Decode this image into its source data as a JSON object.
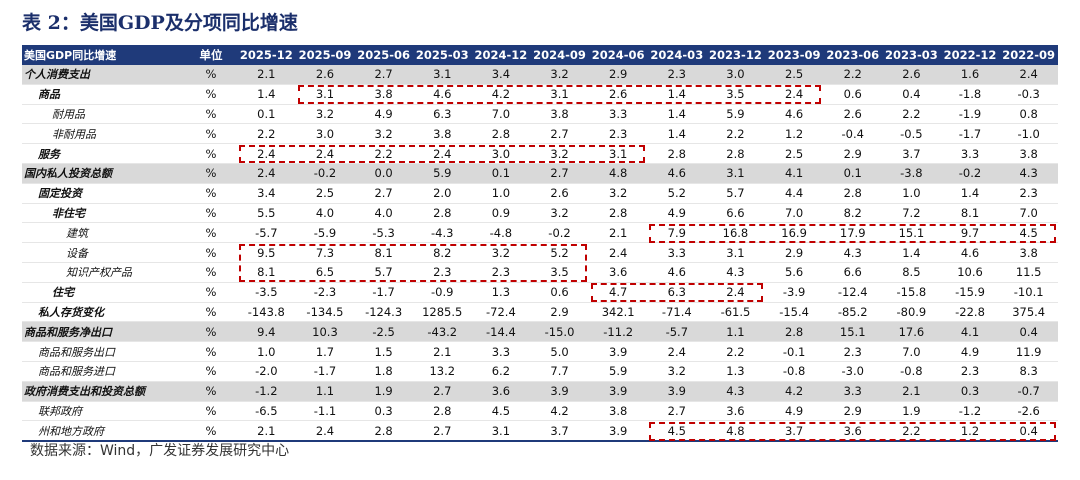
{
  "title": "表 2：美国GDP及分项同比增速",
  "table": {
    "header": [
      "美国GDP同比增速",
      "单位",
      "2025-12",
      "2025-09",
      "2025-06",
      "2025-03",
      "2024-12",
      "2024-09",
      "2024-06",
      "2024-03",
      "2023-12",
      "2023-09",
      "2023-06",
      "2023-03",
      "2022-12",
      "2022-09"
    ],
    "rows": [
      [
        "个人消费支出",
        "%",
        "2.1",
        "2.6",
        "2.7",
        "3.1",
        "3.4",
        "3.2",
        "2.9",
        "2.3",
        "3.0",
        "2.5",
        "2.2",
        "2.6",
        "1.6",
        "2.4"
      ],
      [
        "商品",
        "%",
        "1.4",
        "3.1",
        "3.8",
        "4.6",
        "4.2",
        "3.1",
        "2.6",
        "1.4",
        "3.5",
        "2.4",
        "0.6",
        "0.4",
        "-1.8",
        "-0.3"
      ],
      [
        "耐用品",
        "%",
        "0.1",
        "3.2",
        "4.9",
        "6.3",
        "7.0",
        "3.8",
        "3.3",
        "1.4",
        "5.9",
        "4.6",
        "2.6",
        "2.2",
        "-1.9",
        "0.8"
      ],
      [
        "非耐用品",
        "%",
        "2.2",
        "3.0",
        "3.2",
        "3.8",
        "2.8",
        "2.7",
        "2.3",
        "1.4",
        "2.2",
        "1.2",
        "-0.4",
        "-0.5",
        "-1.7",
        "-1.0"
      ],
      [
        "服务",
        "%",
        "2.4",
        "2.4",
        "2.2",
        "2.4",
        "3.0",
        "3.2",
        "3.1",
        "2.8",
        "2.8",
        "2.5",
        "2.9",
        "3.7",
        "3.3",
        "3.8"
      ],
      [
        "国内私人投资总额",
        "%",
        "2.4",
        "-0.2",
        "0.0",
        "5.9",
        "0.1",
        "2.7",
        "4.8",
        "4.6",
        "3.1",
        "4.1",
        "0.1",
        "-3.8",
        "-0.2",
        "4.3"
      ],
      [
        "固定投资",
        "%",
        "3.4",
        "2.5",
        "2.7",
        "2.0",
        "1.0",
        "2.6",
        "3.2",
        "5.2",
        "5.7",
        "4.4",
        "2.8",
        "1.0",
        "1.4",
        "2.3"
      ],
      [
        "非住宅",
        "%",
        "5.5",
        "4.0",
        "4.0",
        "2.8",
        "0.9",
        "3.2",
        "2.8",
        "4.9",
        "6.6",
        "7.0",
        "8.2",
        "7.2",
        "8.1",
        "7.0"
      ],
      [
        "建筑",
        "%",
        "-5.7",
        "-5.9",
        "-5.3",
        "-4.3",
        "-4.8",
        "-0.2",
        "2.1",
        "7.9",
        "16.8",
        "16.9",
        "17.9",
        "15.1",
        "9.7",
        "4.5"
      ],
      [
        "设备",
        "%",
        "9.5",
        "7.3",
        "8.1",
        "8.2",
        "3.2",
        "5.2",
        "2.4",
        "3.3",
        "3.1",
        "2.9",
        "4.3",
        "1.4",
        "4.6",
        "3.8"
      ],
      [
        "知识产权产品",
        "%",
        "8.1",
        "6.5",
        "5.7",
        "2.3",
        "2.3",
        "3.5",
        "3.6",
        "4.6",
        "4.3",
        "5.6",
        "6.6",
        "8.5",
        "10.6",
        "11.5"
      ],
      [
        "住宅",
        "%",
        "-3.5",
        "-2.3",
        "-1.7",
        "-0.9",
        "1.3",
        "0.6",
        "4.7",
        "6.3",
        "2.4",
        "-3.9",
        "-12.4",
        "-15.8",
        "-15.9",
        "-10.1"
      ],
      [
        "私人存货变化",
        "%",
        "-143.8",
        "-134.5",
        "-124.3",
        "1285.5",
        "-72.4",
        "2.9",
        "342.1",
        "-71.4",
        "-61.5",
        "-15.4",
        "-85.2",
        "-80.9",
        "-22.8",
        "375.4"
      ],
      [
        "商品和服务净出口",
        "%",
        "9.4",
        "10.3",
        "-2.5",
        "-43.2",
        "-14.4",
        "-15.0",
        "-11.2",
        "-5.7",
        "1.1",
        "2.8",
        "15.1",
        "17.6",
        "4.1",
        "0.4"
      ],
      [
        "商品和服务出口",
        "%",
        "1.0",
        "1.7",
        "1.5",
        "2.1",
        "3.3",
        "5.0",
        "3.9",
        "2.4",
        "2.2",
        "-0.1",
        "2.3",
        "7.0",
        "4.9",
        "11.9"
      ],
      [
        "商品和服务进口",
        "%",
        "-2.0",
        "-1.7",
        "1.8",
        "13.2",
        "6.2",
        "7.7",
        "5.9",
        "3.2",
        "1.3",
        "-0.8",
        "-3.0",
        "-0.8",
        "2.3",
        "8.3"
      ],
      [
        "政府消费支出和投资总额",
        "%",
        "-1.2",
        "1.1",
        "1.9",
        "2.7",
        "3.6",
        "3.9",
        "3.9",
        "3.9",
        "4.3",
        "4.2",
        "3.3",
        "2.1",
        "0.3",
        "-0.7"
      ],
      [
        "联邦政府",
        "%",
        "-6.5",
        "-1.1",
        "0.3",
        "2.8",
        "4.5",
        "4.2",
        "3.8",
        "2.7",
        "3.6",
        "4.9",
        "2.9",
        "1.9",
        "-1.2",
        "-2.6"
      ],
      [
        "州和地方政府",
        "%",
        "2.1",
        "2.4",
        "2.8",
        "2.7",
        "3.1",
        "3.7",
        "3.9",
        "4.5",
        "4.8",
        "3.7",
        "3.6",
        "2.2",
        "1.2",
        "0.4"
      ]
    ]
  },
  "source": "数据来源：Wind，广发证券发展研究中心"
}
